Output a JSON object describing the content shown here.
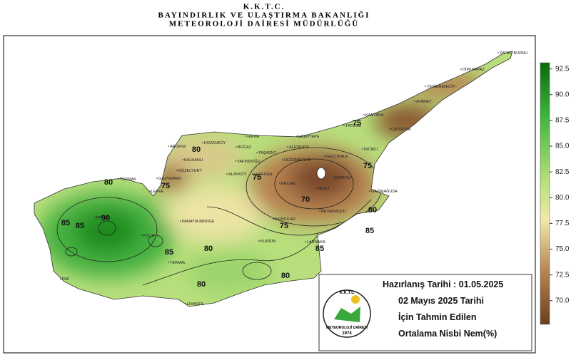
{
  "header": {
    "line1": "K.K.T.C.",
    "line2": "BAYINDIRLIK VE ULAŞTIRMA  BAKANLIĞI",
    "line3": "METEOROLOJİ  DAİRESİ  MÜDÜRLÜĞÜ"
  },
  "places": [
    "ZAFER BURNU",
    "DİPKARPAZ",
    "YENİERENKÖY",
    "AYAMET",
    "KANTARA",
    "ÇAYIROVA",
    "TATLISU",
    "İNCİRLİ",
    "GEÇİTKALE",
    "GAZİMAĞUSA",
    "BEYARMUDU",
    "GİRNE",
    "ESENTEPE",
    "ALEVKAYA",
    "BOĞAZ",
    "TAŞKENT",
    "DEĞİRMENLİK",
    "YAKINDOĞU",
    "ALAYKÖY",
    "LEFKOŞA",
    "ERCAN",
    "VADİLİ",
    "ÇORTOLİ",
    "AKINCILAR",
    "KOZANKÖY",
    "ARDENZ",
    "KALKANLI",
    "GÜZELYURT",
    "GAZİVEREN",
    "TERMAK",
    "LEFKE",
    "PANAYIA BRIDGE",
    "KURİON",
    "LARNAKA",
    "LİMASOL",
    "PAFOS",
    "POLİS",
    "PAF",
    "TERMAL"
  ],
  "contour_labels": [
    80,
    75,
    80,
    85,
    90,
    70,
    75,
    75,
    75,
    75,
    80,
    85,
    85,
    85,
    80,
    80,
    80,
    85
  ],
  "colorbar": {
    "lim": [
      67.7,
      93.1
    ],
    "ticks": [
      92.5,
      {
        "value": 90,
        "label": "90.0"
      },
      87.5,
      {
        "value": 85,
        "label": "85.0"
      },
      82.5,
      {
        "value": 80,
        "label": "80.0"
      },
      77.5,
      {
        "value": 75,
        "label": "75.0"
      },
      72.5,
      {
        "value": 70,
        "label": "70.0"
      }
    ]
  },
  "info": {
    "prepared": "Hazırlanış Tarihi : 01.05.2025",
    "line1": "02 Mayıs 2025 Tarihi",
    "line2": "İçin Tahmin Edilen",
    "line3": "Ortalama Nisbi Nem(%)"
  },
  "logo": {
    "top": "K.K.T.C",
    "bottom": "METEOROLOJİ DAİRESİ",
    "year": "1974"
  }
}
